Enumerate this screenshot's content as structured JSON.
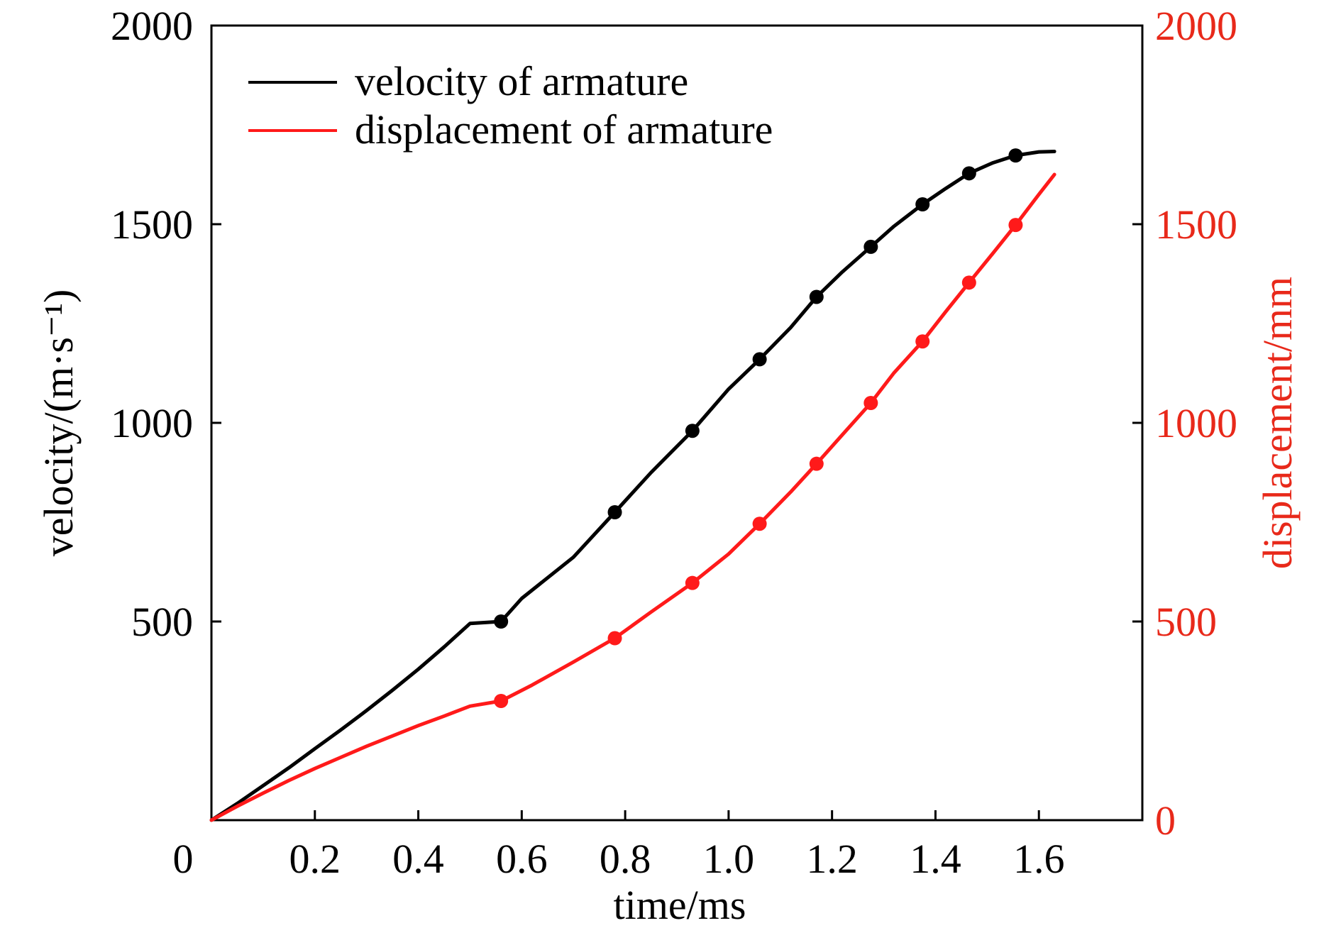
{
  "colors": {
    "velocity": "#000000",
    "displacement": "#ff1a1a",
    "right_axis_text": "#e8291a",
    "axes": "#000000"
  },
  "chart_data": {
    "type": "line",
    "xlabel": "time/ms",
    "ylabel_left": "velocity/(m·s⁻¹)",
    "ylabel_right": "displacement/mm",
    "xlim": [
      0,
      1.8
    ],
    "ylim_left": [
      0,
      2000
    ],
    "ylim_right": [
      0,
      2000
    ],
    "x_ticks": [
      0.2,
      0.4,
      0.6,
      0.8,
      1.0,
      1.2,
      1.4,
      1.6
    ],
    "x_tick_labels": [
      "0.2",
      "0.4",
      "0.6",
      "0.8",
      "1.0",
      "1.2",
      "1.4",
      "1.6"
    ],
    "origin_label": "0",
    "y_left_ticks": [
      500,
      1000,
      1500,
      2000
    ],
    "y_left_tick_labels": [
      "500",
      "1000",
      "1500",
      "2000"
    ],
    "y_right_ticks": [
      0,
      500,
      1000,
      1500,
      2000
    ],
    "y_right_tick_labels": [
      "0",
      "500",
      "1000",
      "1500",
      "2000"
    ],
    "legend_position": "top-left",
    "grid": false,
    "series": [
      {
        "name": "velocity of armature",
        "axis": "left",
        "curve": [
          [
            0,
            0
          ],
          [
            0.05,
            42
          ],
          [
            0.1,
            87
          ],
          [
            0.15,
            132
          ],
          [
            0.2,
            180
          ],
          [
            0.25,
            227
          ],
          [
            0.3,
            276
          ],
          [
            0.35,
            327
          ],
          [
            0.4,
            380
          ],
          [
            0.45,
            436
          ],
          [
            0.5,
            495
          ],
          [
            0.56,
            500
          ],
          [
            0.6,
            558
          ],
          [
            0.7,
            662
          ],
          [
            0.78,
            775
          ],
          [
            0.85,
            875
          ],
          [
            0.93,
            980
          ],
          [
            1.0,
            1085
          ],
          [
            1.06,
            1160
          ],
          [
            1.12,
            1240
          ],
          [
            1.17,
            1317
          ],
          [
            1.22,
            1380
          ],
          [
            1.275,
            1443
          ],
          [
            1.32,
            1495
          ],
          [
            1.375,
            1550
          ],
          [
            1.42,
            1590
          ],
          [
            1.465,
            1628
          ],
          [
            1.51,
            1654
          ],
          [
            1.555,
            1673
          ],
          [
            1.6,
            1682
          ],
          [
            1.63,
            1683
          ]
        ],
        "markers_x": [
          0.56,
          0.78,
          0.93,
          1.06,
          1.17,
          1.275,
          1.375,
          1.465,
          1.555
        ],
        "markers_y": [
          500,
          775,
          980,
          1160,
          1317,
          1443,
          1550,
          1628,
          1673
        ]
      },
      {
        "name": "displacement of armature",
        "axis": "right",
        "curve": [
          [
            0,
            0
          ],
          [
            0.05,
            35
          ],
          [
            0.1,
            68
          ],
          [
            0.15,
            100
          ],
          [
            0.2,
            130
          ],
          [
            0.25,
            158
          ],
          [
            0.3,
            186
          ],
          [
            0.35,
            212
          ],
          [
            0.4,
            238
          ],
          [
            0.45,
            262
          ],
          [
            0.5,
            287
          ],
          [
            0.56,
            300
          ],
          [
            0.62,
            340
          ],
          [
            0.7,
            398
          ],
          [
            0.78,
            458
          ],
          [
            0.85,
            524
          ],
          [
            0.93,
            597
          ],
          [
            1.0,
            670
          ],
          [
            1.06,
            746
          ],
          [
            1.12,
            826
          ],
          [
            1.17,
            897
          ],
          [
            1.22,
            970
          ],
          [
            1.275,
            1050
          ],
          [
            1.32,
            1126
          ],
          [
            1.375,
            1205
          ],
          [
            1.42,
            1280
          ],
          [
            1.465,
            1353
          ],
          [
            1.51,
            1425
          ],
          [
            1.555,
            1498
          ],
          [
            1.6,
            1575
          ],
          [
            1.63,
            1625
          ]
        ],
        "markers_x": [
          0.56,
          0.78,
          0.93,
          1.06,
          1.17,
          1.275,
          1.375,
          1.465,
          1.555
        ],
        "markers_y": [
          300,
          458,
          597,
          746,
          897,
          1050,
          1205,
          1353,
          1498
        ]
      }
    ]
  }
}
